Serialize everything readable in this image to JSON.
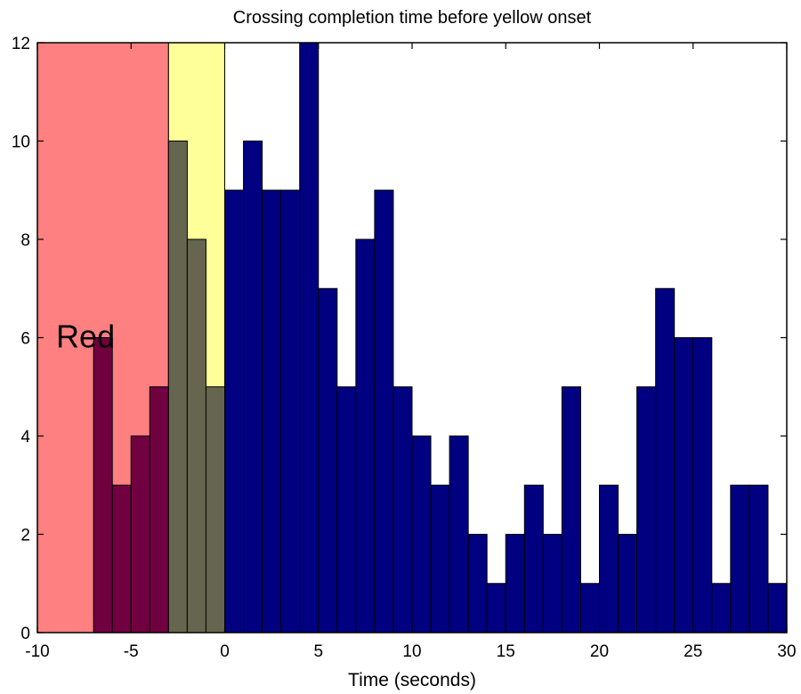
{
  "chart_data": {
    "type": "bar",
    "title": "Crossing completion time before yellow onset",
    "xlabel": "Time (seconds)",
    "ylabel": "",
    "xlim": [
      -10,
      30
    ],
    "ylim": [
      0,
      12
    ],
    "xticks": [
      -10,
      -5,
      0,
      5,
      10,
      15,
      20,
      25,
      30
    ],
    "yticks": [
      0,
      2,
      4,
      6,
      8,
      10,
      12
    ],
    "bin_width": 1,
    "bins": [
      {
        "x0": -7,
        "x1": -6,
        "value": 6
      },
      {
        "x0": -6,
        "x1": -5,
        "value": 3
      },
      {
        "x0": -5,
        "x1": -4,
        "value": 4
      },
      {
        "x0": -4,
        "x1": -3,
        "value": 5
      },
      {
        "x0": -3,
        "x1": -2,
        "value": 10
      },
      {
        "x0": -2,
        "x1": -1,
        "value": 8
      },
      {
        "x0": -1,
        "x1": 0,
        "value": 5
      },
      {
        "x0": 0,
        "x1": 1,
        "value": 9
      },
      {
        "x0": 1,
        "x1": 2,
        "value": 10
      },
      {
        "x0": 2,
        "x1": 3,
        "value": 9
      },
      {
        "x0": 3,
        "x1": 4,
        "value": 9
      },
      {
        "x0": 4,
        "x1": 5,
        "value": 12
      },
      {
        "x0": 5,
        "x1": 6,
        "value": 7
      },
      {
        "x0": 6,
        "x1": 7,
        "value": 5
      },
      {
        "x0": 7,
        "x1": 8,
        "value": 8
      },
      {
        "x0": 8,
        "x1": 9,
        "value": 9
      },
      {
        "x0": 9,
        "x1": 10,
        "value": 5
      },
      {
        "x0": 10,
        "x1": 11,
        "value": 4
      },
      {
        "x0": 11,
        "x1": 12,
        "value": 3
      },
      {
        "x0": 12,
        "x1": 13,
        "value": 4
      },
      {
        "x0": 13,
        "x1": 14,
        "value": 2
      },
      {
        "x0": 14,
        "x1": 15,
        "value": 1
      },
      {
        "x0": 15,
        "x1": 16,
        "value": 2
      },
      {
        "x0": 16,
        "x1": 17,
        "value": 3
      },
      {
        "x0": 17,
        "x1": 18,
        "value": 2
      },
      {
        "x0": 18,
        "x1": 19,
        "value": 5
      },
      {
        "x0": 19,
        "x1": 20,
        "value": 1
      },
      {
        "x0": 20,
        "x1": 21,
        "value": 3
      },
      {
        "x0": 21,
        "x1": 22,
        "value": 2
      },
      {
        "x0": 22,
        "x1": 23,
        "value": 5
      },
      {
        "x0": 23,
        "x1": 24,
        "value": 7
      },
      {
        "x0": 24,
        "x1": 25,
        "value": 6
      },
      {
        "x0": 25,
        "x1": 26,
        "value": 6
      },
      {
        "x0": 26,
        "x1": 27,
        "value": 1
      },
      {
        "x0": 27,
        "x1": 28,
        "value": 3
      },
      {
        "x0": 28,
        "x1": 29,
        "value": 3
      },
      {
        "x0": 29,
        "x1": 30,
        "value": 1
      }
    ],
    "regions": [
      {
        "label": "Red",
        "x0": -10,
        "x1": -3,
        "color": "#ff8080"
      },
      {
        "label": "",
        "x0": -3,
        "x1": 0,
        "color": "#ffff99"
      }
    ],
    "bar_color": "#000080",
    "bar_edge_color": "#000000",
    "grid": false,
    "legend": "none"
  }
}
